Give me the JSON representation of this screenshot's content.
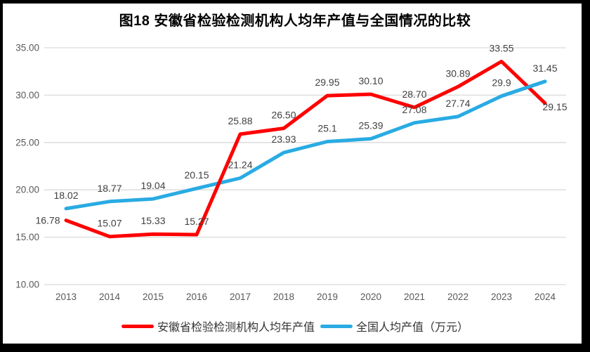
{
  "title": "图18 安徽省检验检测机构人均年产值与全国情况的比较",
  "chart_data": {
    "type": "line",
    "title": "图18 安徽省检验检测机构人均年产值与全国情况的比较",
    "categories": [
      "2013",
      "2014",
      "2015",
      "2016",
      "2017",
      "2018",
      "2019",
      "2020",
      "2021",
      "2022",
      "2023",
      "2024"
    ],
    "series": [
      {
        "name": "安徽省检验检测机构人均年产值",
        "color": "#FF0000",
        "values": [
          16.78,
          15.07,
          15.33,
          15.27,
          25.88,
          26.5,
          29.95,
          30.1,
          28.7,
          30.89,
          33.55,
          29.15
        ],
        "labels": [
          "16.78",
          "15.07",
          "15.33",
          "15.27",
          "25.88",
          "26.50",
          "29.95",
          "30.10",
          "28.70",
          "30.89",
          "33.55",
          "29.15"
        ]
      },
      {
        "name": "全国人均产值（万元）",
        "color": "#29ABE3",
        "values": [
          18.02,
          18.77,
          19.04,
          20.15,
          21.24,
          23.93,
          25.1,
          25.39,
          27.08,
          27.74,
          29.9,
          31.45
        ],
        "labels": [
          "18.02",
          "18.77",
          "19.04",
          "20.15",
          "21.24",
          "23.93",
          "25.1",
          "25.39",
          "27.08",
          "27.74",
          "29.9",
          "31.45"
        ]
      }
    ],
    "ylim": [
      10,
      35
    ],
    "ytick_values": [
      10,
      15,
      20,
      25,
      30,
      35
    ],
    "ytick_labels": [
      "10.00",
      "15.00",
      "20.00",
      "25.00",
      "30.00",
      "35.00"
    ],
    "grid": true,
    "legend_position": "bottom",
    "gridline_color": "#D9D9D9",
    "axis_text_color": "#595959",
    "data_label_color": "#404040",
    "label_offsets": {
      "0": {
        "0": [
          -26,
          5
        ],
        "11": [
          14,
          10
        ]
      }
    }
  }
}
